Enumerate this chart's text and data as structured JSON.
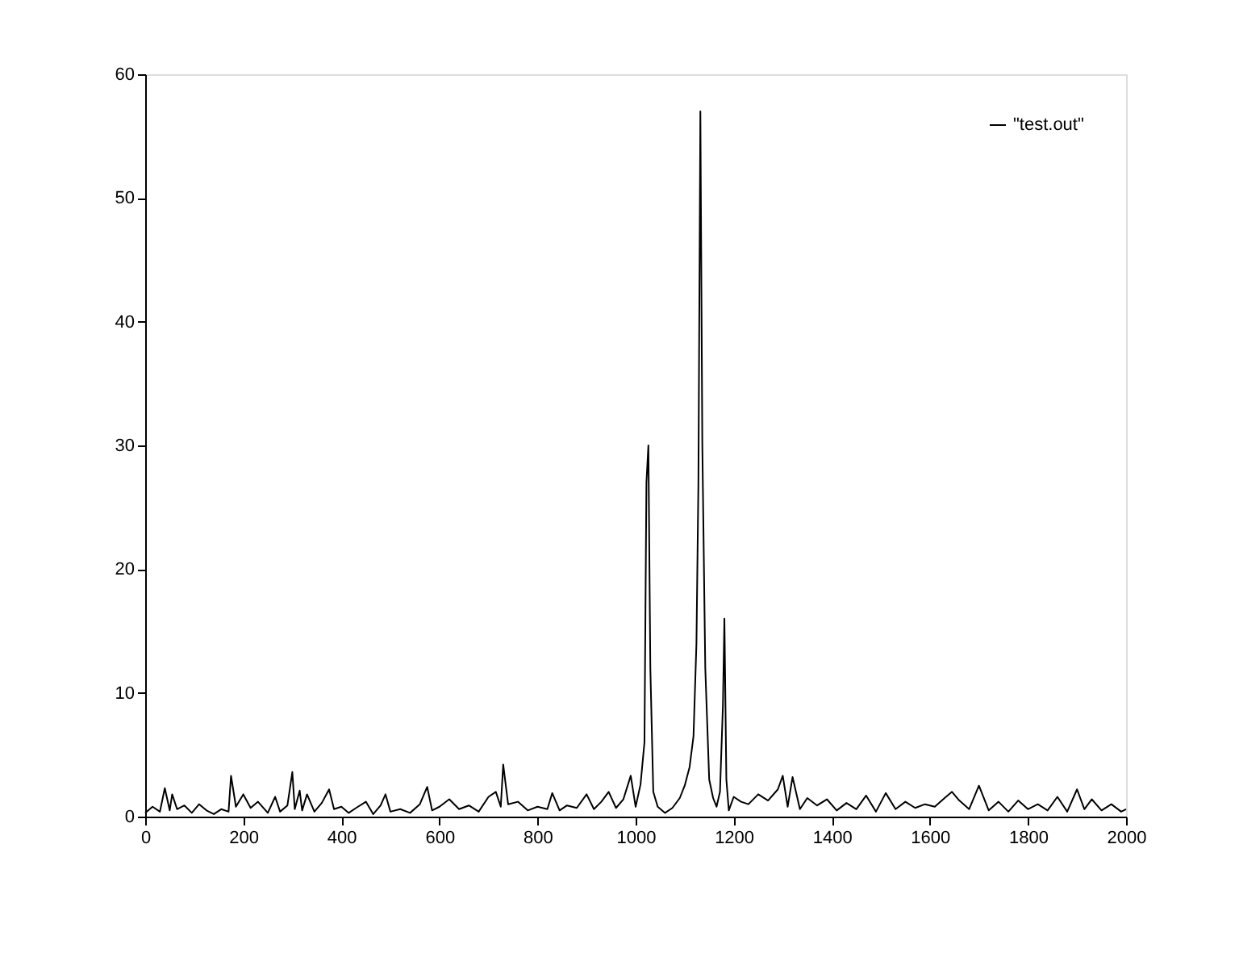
{
  "chart_data": {
    "type": "line",
    "xlim": [
      0,
      2000
    ],
    "ylim": [
      0,
      60
    ],
    "xticks": [
      0,
      200,
      400,
      600,
      800,
      1000,
      1200,
      1400,
      1600,
      1800,
      2000
    ],
    "yticks": [
      0,
      10,
      20,
      30,
      40,
      50,
      60
    ],
    "grid": false,
    "legend": "top right",
    "marker": "none",
    "line_style": "solid",
    "series": [
      {
        "name": "\"test.out\"",
        "color": "#000000",
        "x": [
          0,
          15,
          30,
          40,
          50,
          55,
          65,
          80,
          95,
          110,
          125,
          140,
          155,
          170,
          175,
          185,
          200,
          215,
          230,
          250,
          265,
          275,
          290,
          300,
          305,
          315,
          320,
          330,
          345,
          360,
          375,
          385,
          400,
          415,
          430,
          450,
          465,
          480,
          490,
          500,
          520,
          540,
          560,
          575,
          585,
          600,
          620,
          640,
          660,
          680,
          700,
          715,
          725,
          730,
          740,
          760,
          780,
          800,
          820,
          830,
          845,
          860,
          880,
          900,
          915,
          930,
          945,
          960,
          975,
          990,
          1000,
          1010,
          1018,
          1022,
          1026,
          1030,
          1036,
          1045,
          1060,
          1075,
          1090,
          1100,
          1110,
          1118,
          1124,
          1128,
          1132,
          1136,
          1142,
          1150,
          1158,
          1165,
          1172,
          1178,
          1181,
          1185,
          1190,
          1200,
          1215,
          1230,
          1250,
          1270,
          1290,
          1300,
          1310,
          1320,
          1335,
          1350,
          1370,
          1390,
          1410,
          1430,
          1450,
          1470,
          1490,
          1510,
          1530,
          1550,
          1570,
          1590,
          1610,
          1630,
          1645,
          1660,
          1680,
          1700,
          1720,
          1740,
          1760,
          1780,
          1800,
          1820,
          1840,
          1860,
          1880,
          1900,
          1915,
          1930,
          1950,
          1970,
          1990,
          2000
        ],
        "values": [
          0.3,
          0.8,
          0.4,
          2.3,
          0.5,
          1.8,
          0.6,
          0.9,
          0.3,
          1.0,
          0.5,
          0.2,
          0.6,
          0.4,
          3.3,
          0.8,
          1.8,
          0.7,
          1.2,
          0.3,
          1.6,
          0.4,
          0.9,
          3.6,
          0.6,
          2.1,
          0.5,
          1.8,
          0.4,
          1.1,
          2.2,
          0.6,
          0.8,
          0.3,
          0.7,
          1.2,
          0.2,
          0.9,
          1.8,
          0.4,
          0.6,
          0.3,
          1.0,
          2.4,
          0.5,
          0.8,
          1.4,
          0.6,
          0.9,
          0.4,
          1.6,
          2.0,
          0.8,
          4.2,
          1.0,
          1.2,
          0.5,
          0.8,
          0.6,
          1.9,
          0.5,
          0.9,
          0.7,
          1.8,
          0.6,
          1.2,
          2.0,
          0.7,
          1.4,
          3.3,
          0.8,
          2.6,
          6.0,
          27.0,
          30.0,
          12.0,
          2.0,
          0.8,
          0.3,
          0.7,
          1.5,
          2.5,
          4.0,
          6.5,
          14.0,
          27.0,
          57.0,
          30.0,
          12.0,
          3.0,
          1.5,
          0.8,
          2.0,
          9.0,
          16.0,
          3.0,
          0.5,
          1.6,
          1.2,
          1.0,
          1.8,
          1.3,
          2.2,
          3.3,
          0.8,
          3.2,
          0.6,
          1.5,
          0.9,
          1.4,
          0.5,
          1.1,
          0.6,
          1.7,
          0.4,
          1.9,
          0.6,
          1.2,
          0.7,
          1.0,
          0.8,
          1.5,
          2.0,
          1.3,
          0.6,
          2.5,
          0.5,
          1.2,
          0.4,
          1.3,
          0.6,
          1.0,
          0.5,
          1.6,
          0.4,
          2.2,
          0.6,
          1.4,
          0.5,
          1.0,
          0.4,
          0.6
        ]
      }
    ]
  }
}
